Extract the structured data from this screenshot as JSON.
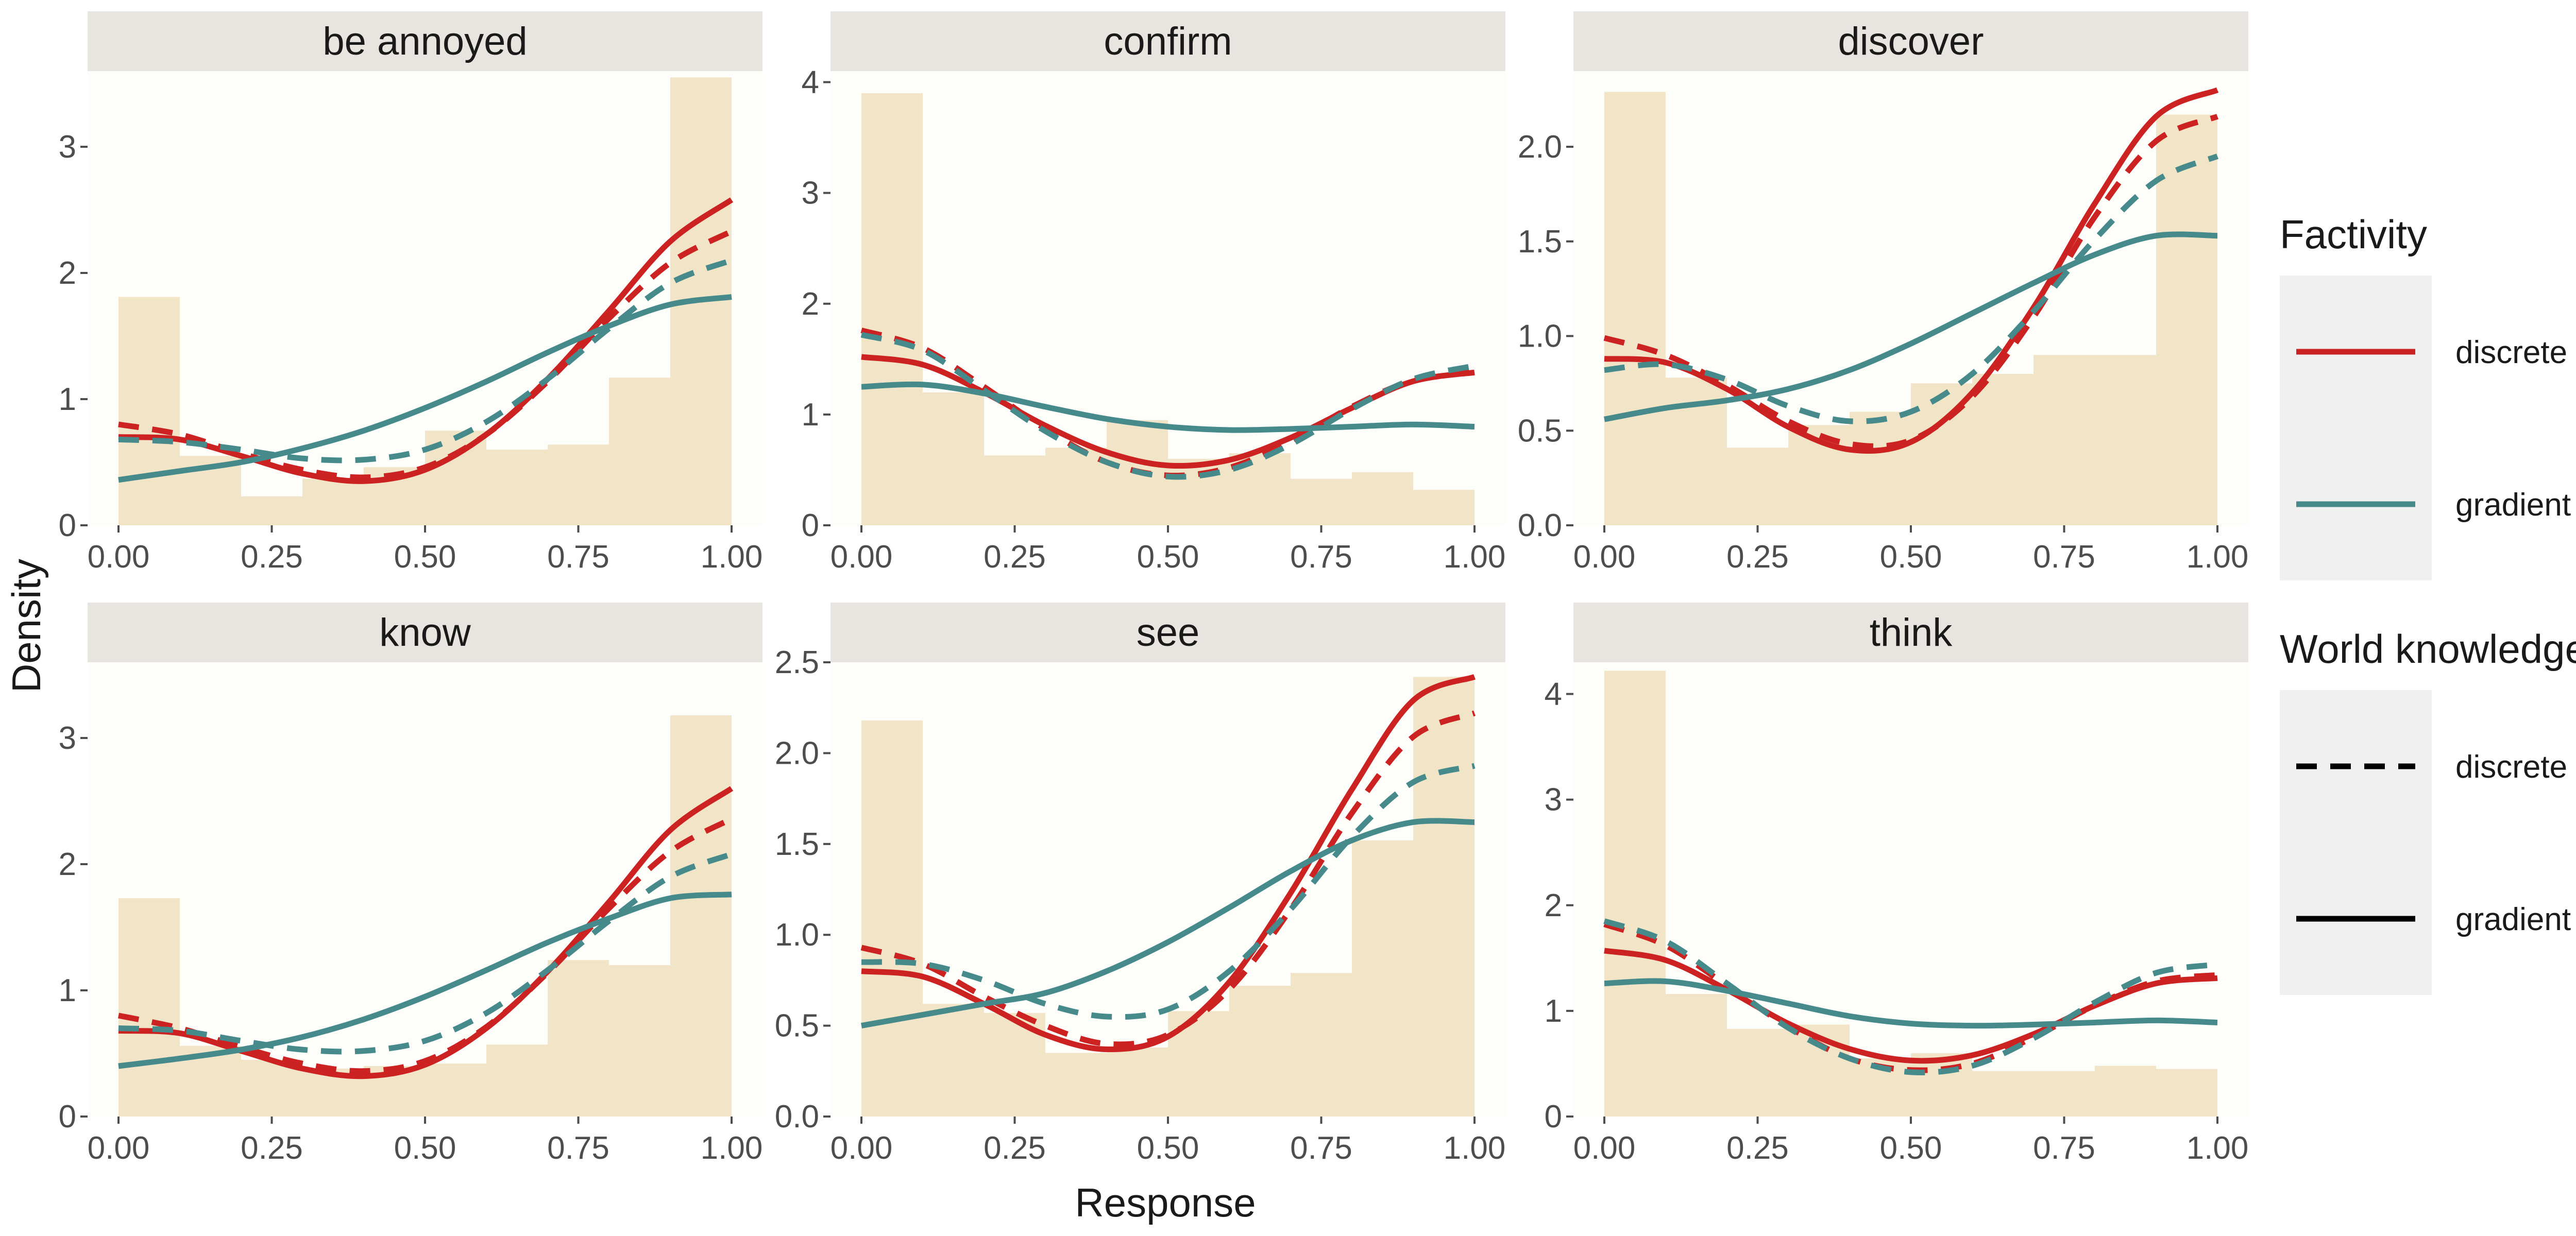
{
  "chart_data": {
    "type": "histogram_with_density_curves",
    "facets": [
      "be annoyed",
      "confirm",
      "discover",
      "know",
      "see",
      "think"
    ],
    "xlabel": "Response",
    "ylabel": "Density",
    "xlim": [
      0,
      1
    ],
    "x_ticks": [
      "0.00",
      "0.25",
      "0.50",
      "0.75",
      "1.00"
    ],
    "bin_edges": [
      0,
      0.1,
      0.2,
      0.3,
      0.4,
      0.5,
      0.6,
      0.7,
      0.8,
      0.9,
      1.0
    ],
    "colors": {
      "panel_bg": "#fdfdfa",
      "strip_bg": "#e8e4e0",
      "histogram": "#f2e5c7",
      "discrete_factivity": "#cc2222",
      "gradient_factivity": "#468a8c",
      "legend_key_bg": "#f0f0f0"
    },
    "legend": {
      "position": "right",
      "groups": [
        {
          "title": "Factivity",
          "encoding": "color",
          "entries": [
            {
              "label": "discrete",
              "color": "#cc2222"
            },
            {
              "label": "gradient",
              "color": "#468a8c"
            }
          ]
        },
        {
          "title": "World knowledge",
          "encoding": "linetype",
          "entries": [
            {
              "label": "discrete",
              "linetype": "dashed"
            },
            {
              "label": "gradient",
              "linetype": "solid"
            }
          ]
        }
      ]
    },
    "grid": false,
    "panels": [
      {
        "title": "be annoyed",
        "ylim": [
          0,
          3.6
        ],
        "y_ticks": [
          0,
          1,
          2,
          3
        ],
        "y_tick_labels": [
          "0",
          "1",
          "2",
          "3"
        ],
        "histogram": [
          1.81,
          0.55,
          0.23,
          0.37,
          0.46,
          0.75,
          0.6,
          0.64,
          1.17,
          3.55
        ],
        "curves": [
          {
            "factivity": "discrete",
            "world_knowledge": "gradient",
            "x": [
              0,
              0.1,
              0.2,
              0.3,
              0.4,
              0.5,
              0.6,
              0.7,
              0.8,
              0.9,
              1.0
            ],
            "y": [
              0.7,
              0.68,
              0.55,
              0.41,
              0.35,
              0.44,
              0.72,
              1.16,
              1.7,
              2.25,
              2.58
            ]
          },
          {
            "factivity": "discrete",
            "world_knowledge": "discrete",
            "x": [
              0,
              0.1,
              0.2,
              0.3,
              0.4,
              0.5,
              0.6,
              0.7,
              0.8,
              0.9,
              1.0
            ],
            "y": [
              0.8,
              0.72,
              0.57,
              0.44,
              0.38,
              0.46,
              0.72,
              1.14,
              1.64,
              2.08,
              2.33
            ]
          },
          {
            "factivity": "gradient",
            "world_knowledge": "discrete",
            "x": [
              0,
              0.1,
              0.2,
              0.3,
              0.4,
              0.5,
              0.6,
              0.7,
              0.8,
              0.9,
              1.0
            ],
            "y": [
              0.68,
              0.66,
              0.6,
              0.53,
              0.52,
              0.6,
              0.82,
              1.16,
              1.56,
              1.92,
              2.1
            ]
          },
          {
            "factivity": "gradient",
            "world_knowledge": "gradient",
            "x": [
              0,
              0.1,
              0.2,
              0.3,
              0.4,
              0.5,
              0.6,
              0.7,
              0.8,
              0.9,
              1.0
            ],
            "y": [
              0.36,
              0.43,
              0.5,
              0.61,
              0.75,
              0.93,
              1.14,
              1.37,
              1.58,
              1.75,
              1.81
            ]
          }
        ]
      },
      {
        "title": "confirm",
        "ylim": [
          0,
          4.1
        ],
        "y_ticks": [
          0,
          1,
          2,
          3,
          4
        ],
        "y_tick_labels": [
          "0",
          "1",
          "2",
          "3",
          "4"
        ],
        "histogram": [
          3.9,
          1.2,
          0.63,
          0.7,
          0.95,
          0.6,
          0.65,
          0.42,
          0.48,
          0.32
        ],
        "curves": [
          {
            "factivity": "discrete",
            "world_knowledge": "gradient",
            "x": [
              0,
              0.1,
              0.2,
              0.3,
              0.4,
              0.5,
              0.6,
              0.7,
              0.8,
              0.9,
              1.0
            ],
            "y": [
              1.52,
              1.45,
              1.2,
              0.9,
              0.66,
              0.54,
              0.59,
              0.79,
              1.06,
              1.3,
              1.38
            ]
          },
          {
            "factivity": "discrete",
            "world_knowledge": "discrete",
            "x": [
              0,
              0.1,
              0.2,
              0.3,
              0.4,
              0.5,
              0.6,
              0.7,
              0.8,
              0.9,
              1.0
            ],
            "y": [
              1.76,
              1.6,
              1.25,
              0.87,
              0.57,
              0.45,
              0.52,
              0.76,
              1.07,
              1.31,
              1.4
            ]
          },
          {
            "factivity": "gradient",
            "world_knowledge": "discrete",
            "x": [
              0,
              0.1,
              0.2,
              0.3,
              0.4,
              0.5,
              0.6,
              0.7,
              0.8,
              0.9,
              1.0
            ],
            "y": [
              1.72,
              1.58,
              1.22,
              0.85,
              0.57,
              0.44,
              0.5,
              0.73,
              1.05,
              1.32,
              1.44
            ]
          },
          {
            "factivity": "gradient",
            "world_knowledge": "gradient",
            "x": [
              0,
              0.1,
              0.2,
              0.3,
              0.4,
              0.5,
              0.6,
              0.7,
              0.8,
              0.9,
              1.0
            ],
            "y": [
              1.25,
              1.27,
              1.19,
              1.07,
              0.96,
              0.89,
              0.86,
              0.87,
              0.89,
              0.91,
              0.89
            ]
          }
        ]
      },
      {
        "title": "discover",
        "ylim": [
          0,
          2.4
        ],
        "y_ticks": [
          0,
          0.5,
          1,
          1.5,
          2
        ],
        "y_tick_labels": [
          "0.0",
          "0.5",
          "1.0",
          "1.5",
          "2.0"
        ],
        "histogram": [
          2.29,
          0.78,
          0.41,
          0.53,
          0.6,
          0.75,
          0.8,
          0.9,
          0.9,
          2.17
        ],
        "curves": [
          {
            "factivity": "discrete",
            "world_knowledge": "gradient",
            "x": [
              0,
              0.1,
              0.2,
              0.3,
              0.4,
              0.5,
              0.6,
              0.7,
              0.8,
              0.9,
              1.0
            ],
            "y": [
              0.88,
              0.86,
              0.72,
              0.52,
              0.4,
              0.44,
              0.7,
              1.15,
              1.7,
              2.16,
              2.3
            ]
          },
          {
            "factivity": "discrete",
            "world_knowledge": "discrete",
            "x": [
              0,
              0.1,
              0.2,
              0.3,
              0.4,
              0.5,
              0.6,
              0.7,
              0.8,
              0.9,
              1.0
            ],
            "y": [
              0.99,
              0.9,
              0.74,
              0.55,
              0.43,
              0.45,
              0.68,
              1.1,
              1.63,
              2.03,
              2.16
            ]
          },
          {
            "factivity": "gradient",
            "world_knowledge": "discrete",
            "x": [
              0,
              0.1,
              0.2,
              0.3,
              0.4,
              0.5,
              0.6,
              0.7,
              0.8,
              0.9,
              1.0
            ],
            "y": [
              0.82,
              0.85,
              0.77,
              0.63,
              0.55,
              0.6,
              0.8,
              1.13,
              1.51,
              1.82,
              1.95
            ]
          },
          {
            "factivity": "gradient",
            "world_knowledge": "gradient",
            "x": [
              0,
              0.1,
              0.2,
              0.3,
              0.4,
              0.5,
              0.6,
              0.7,
              0.8,
              0.9,
              1.0
            ],
            "y": [
              0.56,
              0.62,
              0.66,
              0.72,
              0.82,
              0.96,
              1.12,
              1.28,
              1.43,
              1.53,
              1.53
            ]
          }
        ]
      },
      {
        "title": "know",
        "ylim": [
          0,
          3.6
        ],
        "y_ticks": [
          0,
          1,
          2,
          3
        ],
        "y_tick_labels": [
          "0",
          "1",
          "2",
          "3"
        ],
        "histogram": [
          1.73,
          0.56,
          0.45,
          0.38,
          0.4,
          0.42,
          0.57,
          1.24,
          1.2,
          3.18
        ],
        "curves": [
          {
            "factivity": "discrete",
            "world_knowledge": "gradient",
            "x": [
              0,
              0.1,
              0.2,
              0.3,
              0.4,
              0.5,
              0.6,
              0.7,
              0.8,
              0.9,
              1.0
            ],
            "y": [
              0.68,
              0.66,
              0.52,
              0.38,
              0.32,
              0.41,
              0.7,
              1.15,
              1.7,
              2.27,
              2.6
            ]
          },
          {
            "factivity": "discrete",
            "world_knowledge": "discrete",
            "x": [
              0,
              0.1,
              0.2,
              0.3,
              0.4,
              0.5,
              0.6,
              0.7,
              0.8,
              0.9,
              1.0
            ],
            "y": [
              0.8,
              0.7,
              0.55,
              0.42,
              0.36,
              0.44,
              0.71,
              1.14,
              1.65,
              2.1,
              2.36
            ]
          },
          {
            "factivity": "gradient",
            "world_knowledge": "discrete",
            "x": [
              0,
              0.1,
              0.2,
              0.3,
              0.4,
              0.5,
              0.6,
              0.7,
              0.8,
              0.9,
              1.0
            ],
            "y": [
              0.7,
              0.68,
              0.6,
              0.53,
              0.52,
              0.6,
              0.82,
              1.16,
              1.55,
              1.9,
              2.08
            ]
          },
          {
            "factivity": "gradient",
            "world_knowledge": "gradient",
            "x": [
              0,
              0.1,
              0.2,
              0.3,
              0.4,
              0.5,
              0.6,
              0.7,
              0.8,
              0.9,
              1.0
            ],
            "y": [
              0.4,
              0.46,
              0.53,
              0.63,
              0.77,
              0.95,
              1.16,
              1.38,
              1.57,
              1.73,
              1.76
            ]
          }
        ]
      },
      {
        "title": "see",
        "ylim": [
          0,
          2.5
        ],
        "y_ticks": [
          0,
          0.5,
          1,
          1.5,
          2,
          2.5
        ],
        "y_tick_labels": [
          "0.0",
          "0.5",
          "1.0",
          "1.5",
          "2.0",
          "2.5"
        ],
        "histogram": [
          2.18,
          0.62,
          0.57,
          0.35,
          0.38,
          0.58,
          0.72,
          0.79,
          1.52,
          2.42
        ],
        "curves": [
          {
            "factivity": "discrete",
            "world_knowledge": "gradient",
            "x": [
              0,
              0.1,
              0.2,
              0.3,
              0.4,
              0.5,
              0.6,
              0.7,
              0.8,
              0.9,
              1.0
            ],
            "y": [
              0.8,
              0.77,
              0.62,
              0.45,
              0.37,
              0.44,
              0.74,
              1.23,
              1.8,
              2.29,
              2.42
            ]
          },
          {
            "factivity": "discrete",
            "world_knowledge": "discrete",
            "x": [
              0,
              0.1,
              0.2,
              0.3,
              0.4,
              0.5,
              0.6,
              0.7,
              0.8,
              0.9,
              1.0
            ],
            "y": [
              0.93,
              0.84,
              0.66,
              0.5,
              0.4,
              0.45,
              0.7,
              1.14,
              1.67,
              2.09,
              2.22
            ]
          },
          {
            "factivity": "gradient",
            "world_knowledge": "discrete",
            "x": [
              0,
              0.1,
              0.2,
              0.3,
              0.4,
              0.5,
              0.6,
              0.7,
              0.8,
              0.9,
              1.0
            ],
            "y": [
              0.85,
              0.84,
              0.75,
              0.62,
              0.55,
              0.59,
              0.8,
              1.14,
              1.54,
              1.84,
              1.93
            ]
          },
          {
            "factivity": "gradient",
            "world_knowledge": "gradient",
            "x": [
              0,
              0.1,
              0.2,
              0.3,
              0.4,
              0.5,
              0.6,
              0.7,
              0.8,
              0.9,
              1.0
            ],
            "y": [
              0.5,
              0.56,
              0.62,
              0.68,
              0.8,
              0.96,
              1.15,
              1.35,
              1.52,
              1.62,
              1.62
            ]
          }
        ]
      },
      {
        "title": "think",
        "ylim": [
          0,
          4.3
        ],
        "y_ticks": [
          0,
          1,
          2,
          3,
          4
        ],
        "y_tick_labels": [
          "0",
          "1",
          "2",
          "3",
          "4"
        ],
        "histogram": [
          4.22,
          1.16,
          0.83,
          0.87,
          0.55,
          0.6,
          0.43,
          0.43,
          0.48,
          0.45
        ],
        "curves": [
          {
            "factivity": "discrete",
            "world_knowledge": "gradient",
            "x": [
              0,
              0.1,
              0.2,
              0.3,
              0.4,
              0.5,
              0.6,
              0.7,
              0.8,
              0.9,
              1.0
            ],
            "y": [
              1.57,
              1.48,
              1.2,
              0.88,
              0.64,
              0.53,
              0.58,
              0.78,
              1.05,
              1.26,
              1.31
            ]
          },
          {
            "factivity": "discrete",
            "world_knowledge": "discrete",
            "x": [
              0,
              0.1,
              0.2,
              0.3,
              0.4,
              0.5,
              0.6,
              0.7,
              0.8,
              0.9,
              1.0
            ],
            "y": [
              1.82,
              1.62,
              1.24,
              0.85,
              0.55,
              0.44,
              0.5,
              0.75,
              1.05,
              1.28,
              1.34
            ]
          },
          {
            "factivity": "gradient",
            "world_knowledge": "discrete",
            "x": [
              0,
              0.1,
              0.2,
              0.3,
              0.4,
              0.5,
              0.6,
              0.7,
              0.8,
              0.9,
              1.0
            ],
            "y": [
              1.85,
              1.66,
              1.26,
              0.84,
              0.55,
              0.42,
              0.48,
              0.74,
              1.08,
              1.36,
              1.44
            ]
          },
          {
            "factivity": "gradient",
            "world_knowledge": "gradient",
            "x": [
              0,
              0.1,
              0.2,
              0.3,
              0.4,
              0.5,
              0.6,
              0.7,
              0.8,
              0.9,
              1.0
            ],
            "y": [
              1.26,
              1.28,
              1.19,
              1.07,
              0.95,
              0.88,
              0.86,
              0.87,
              0.89,
              0.91,
              0.89
            ]
          }
        ]
      }
    ]
  }
}
